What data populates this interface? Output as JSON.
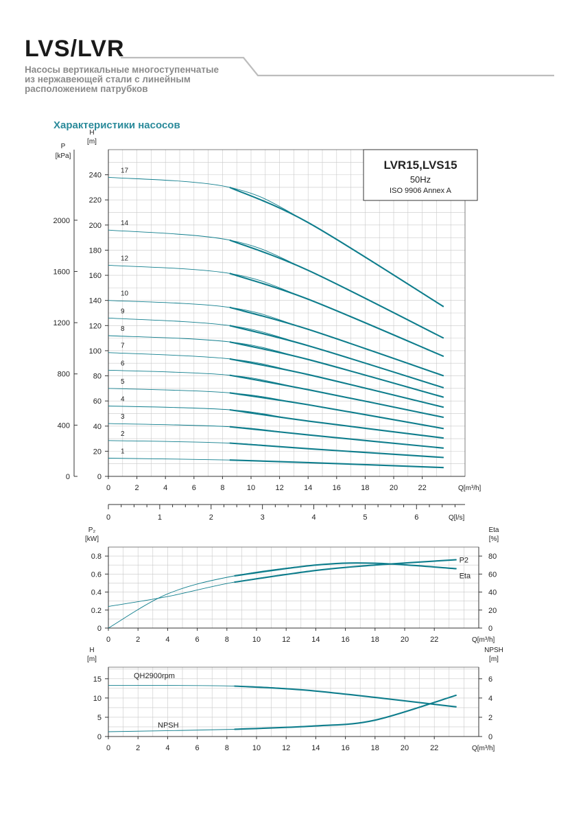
{
  "header": {
    "brand": "LVS/LVR",
    "subtitle_lines": [
      "Насосы вертикальные многоступенчатые",
      "из нержавеющей стали с линейным",
      "расположением патрубков"
    ],
    "section_title": "Характеристики насосов"
  },
  "colors": {
    "curve": "#0e7d8c",
    "grid": "#c8c8c8",
    "axis": "#333333",
    "rule": "#bdbdbd"
  },
  "legend_box": {
    "title": "LVR15,LVS15",
    "freq": "50Hz",
    "standard": "ISO 9906 Annex A"
  },
  "chart_data": [
    {
      "type": "line",
      "name": "head-chart",
      "left_axis_label": [
        "P",
        "[kPa]"
      ],
      "left_axis_ticks": [
        0,
        400,
        800,
        1200,
        1600,
        2000
      ],
      "ylabel": [
        "H",
        "[m]"
      ],
      "ylim": [
        0,
        260
      ],
      "yticks": [
        0,
        20,
        40,
        60,
        80,
        100,
        120,
        140,
        160,
        180,
        200,
        220,
        240
      ],
      "xlabel": "Q[m³/h]",
      "xlim": [
        0,
        25
      ],
      "xticks": [
        0,
        2,
        4,
        6,
        8,
        10,
        12,
        14,
        16,
        18,
        20,
        22
      ],
      "x2label": "Q[l/s]",
      "x2lim": [
        0,
        7
      ],
      "x2ticks": [
        0,
        1,
        2,
        3,
        4,
        5,
        6
      ],
      "series": [
        {
          "name": "1",
          "x": [
            0,
            8.5,
            14,
            23.5
          ],
          "values": [
            14.5,
            13,
            11,
            7
          ]
        },
        {
          "name": "2",
          "x": [
            0,
            8.5,
            14,
            23.5
          ],
          "values": [
            28.5,
            26.5,
            22,
            15
          ]
        },
        {
          "name": "3",
          "x": [
            0,
            8.5,
            14,
            23.5
          ],
          "values": [
            42,
            39.5,
            33,
            22.5
          ]
        },
        {
          "name": "4",
          "x": [
            0,
            8.5,
            14,
            23.5
          ],
          "values": [
            56,
            53,
            44,
            30.5
          ]
        },
        {
          "name": "5",
          "x": [
            0,
            8.5,
            14,
            23.5
          ],
          "values": [
            70,
            66.5,
            57,
            38
          ]
        },
        {
          "name": "6",
          "x": [
            0,
            8.5,
            14,
            23.5
          ],
          "values": [
            84.5,
            80.5,
            69,
            47
          ]
        },
        {
          "name": "7",
          "x": [
            0,
            8.5,
            14,
            23.5
          ],
          "values": [
            98.5,
            93.5,
            81,
            55
          ]
        },
        {
          "name": "8",
          "x": [
            0,
            8.5,
            14,
            23.5
          ],
          "values": [
            112,
            107,
            93,
            63
          ]
        },
        {
          "name": "9",
          "x": [
            0,
            8.5,
            14,
            23.5
          ],
          "values": [
            126,
            120,
            104,
            70.5
          ]
        },
        {
          "name": "10",
          "x": [
            0,
            8.5,
            14,
            23.5
          ],
          "values": [
            140,
            134.5,
            117,
            80
          ]
        },
        {
          "name": "12",
          "x": [
            0,
            8.5,
            14,
            23.5
          ],
          "values": [
            168,
            161.5,
            141,
            95.5
          ]
        },
        {
          "name": "14",
          "x": [
            0,
            8.5,
            14,
            23.5
          ],
          "values": [
            196,
            188,
            164,
            110
          ]
        },
        {
          "name": "17",
          "x": [
            0,
            8.5,
            14,
            23.5
          ],
          "values": [
            238,
            230,
            202,
            135
          ]
        }
      ]
    },
    {
      "type": "line",
      "name": "power-eff-chart",
      "ylabel": [
        "P₂",
        "[kW]"
      ],
      "ylim": [
        0,
        0.9
      ],
      "yticks": [
        0,
        0.2,
        0.4,
        0.6,
        0.8
      ],
      "y2label": [
        "Eta",
        "[%]"
      ],
      "y2lim": [
        0,
        90
      ],
      "y2ticks": [
        0,
        20,
        40,
        60,
        80
      ],
      "xlabel": "Q[m³/h]",
      "xlim": [
        0,
        25
      ],
      "xticks": [
        0,
        2,
        4,
        6,
        8,
        10,
        12,
        14,
        16,
        18,
        20,
        22
      ],
      "series": [
        {
          "name": "P2",
          "axis": "left",
          "x": [
            0,
            4,
            8.5,
            14,
            18,
            23.5
          ],
          "values": [
            0.24,
            0.35,
            0.51,
            0.64,
            0.7,
            0.76
          ]
        },
        {
          "name": "Eta",
          "axis": "right",
          "x": [
            0,
            4,
            8.5,
            14,
            18,
            23.5
          ],
          "values": [
            0,
            38,
            58,
            70,
            72,
            66
          ]
        }
      ]
    },
    {
      "type": "line",
      "name": "npsh-chart",
      "ylabel": [
        "H",
        "[m]"
      ],
      "ylim": [
        0,
        18
      ],
      "yticks": [
        0,
        5,
        10,
        15
      ],
      "y2label": [
        "NPSH",
        "[m]"
      ],
      "y2lim": [
        0,
        7.2
      ],
      "y2ticks": [
        0,
        2,
        4,
        6
      ],
      "xlabel": "Q[m³/h]",
      "xlim": [
        0,
        25
      ],
      "xticks": [
        0,
        2,
        4,
        6,
        8,
        10,
        12,
        14,
        16,
        18,
        20,
        22
      ],
      "series": [
        {
          "name": "QH2900rpm",
          "axis": "left",
          "x": [
            0,
            8.5,
            14,
            23.5
          ],
          "values": [
            13.3,
            13.1,
            11.8,
            7.7
          ]
        },
        {
          "name": "NPSH",
          "axis": "right",
          "x": [
            0,
            8.5,
            14,
            18,
            23.5
          ],
          "values": [
            0.5,
            0.75,
            1.1,
            1.7,
            4.3
          ]
        }
      ]
    }
  ]
}
